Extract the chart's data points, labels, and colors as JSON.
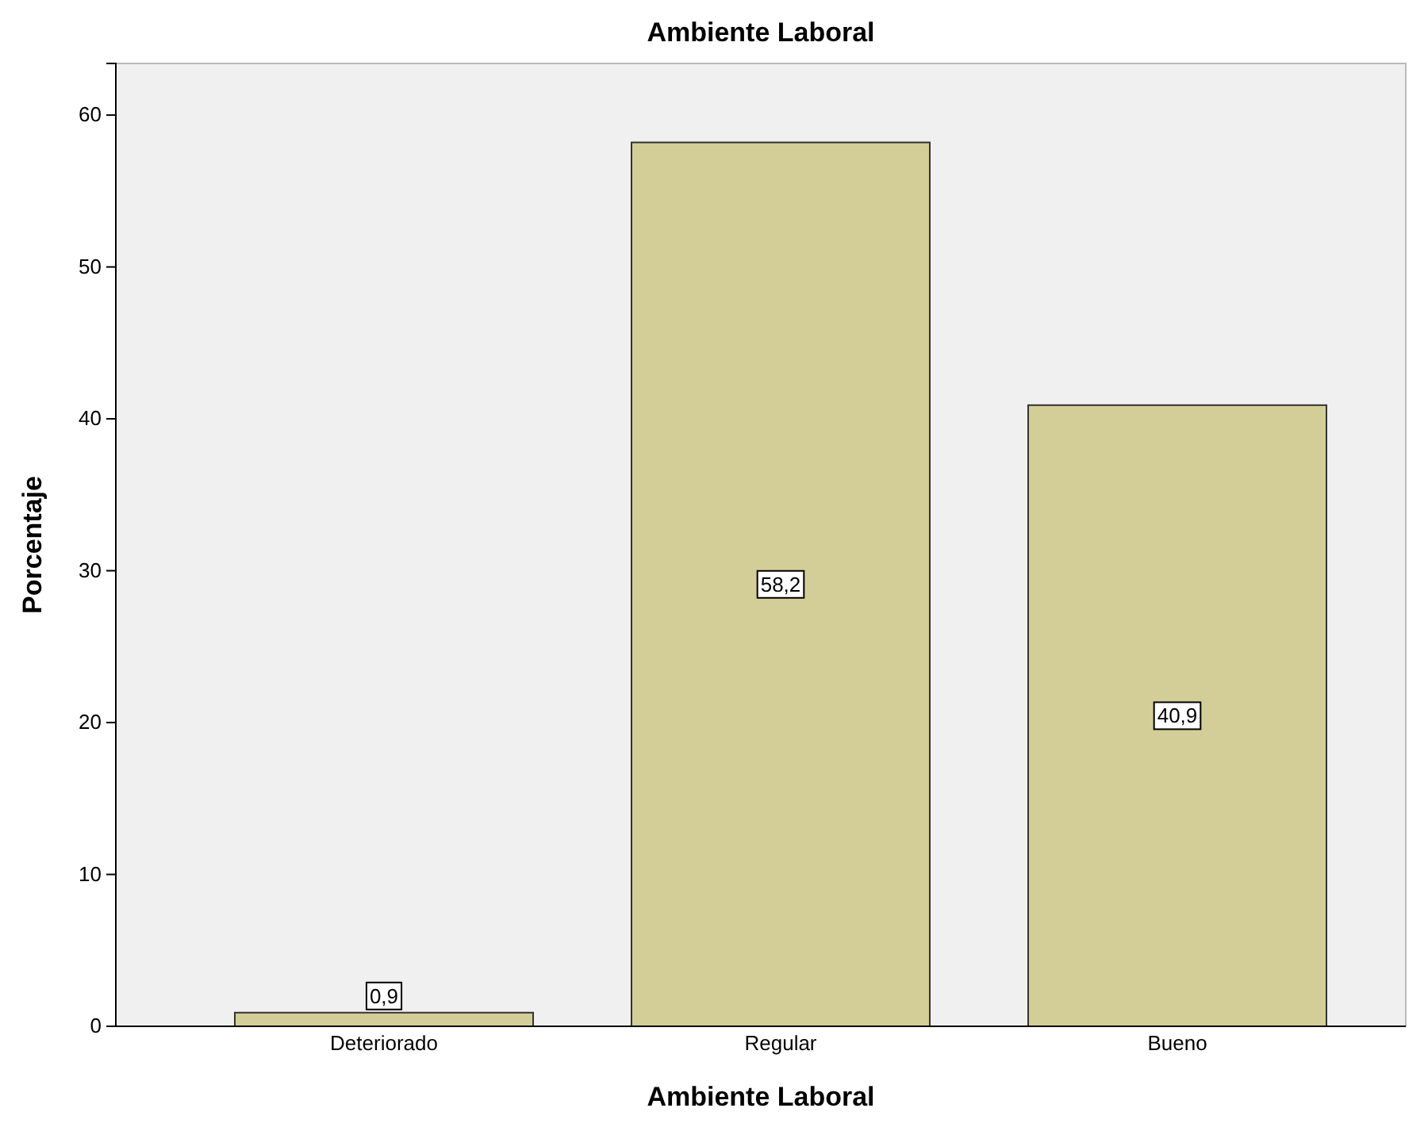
{
  "chart_data": {
    "type": "bar",
    "title": "Ambiente Laboral",
    "xlabel": "Ambiente Laboral",
    "ylabel": "Porcentaje",
    "categories": [
      "Deteriorado",
      "Regular",
      "Bueno"
    ],
    "values": [
      0.9,
      58.2,
      40.9
    ],
    "value_labels": [
      "0,9",
      "58,2",
      "40,9"
    ],
    "color": "#d3ce97",
    "ylim": [
      0,
      63.4
    ],
    "yticks": [
      0,
      10,
      20,
      30,
      40,
      50,
      60
    ],
    "grid": false
  }
}
